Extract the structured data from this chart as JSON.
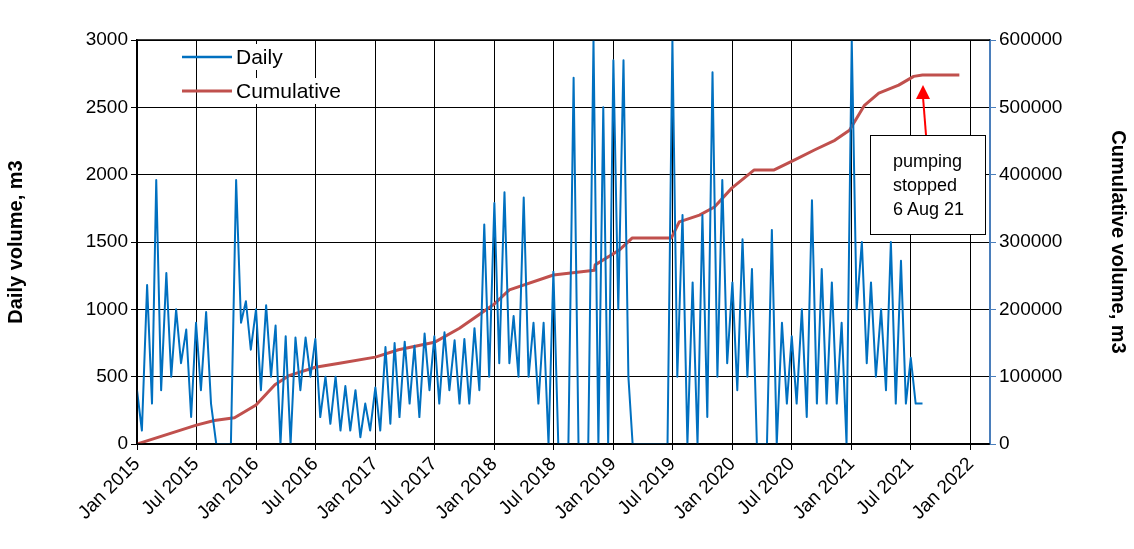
{
  "chart_data": {
    "type": "line",
    "ylabel": "Daily volume, m3",
    "y2label": "Cumulative volume, m3",
    "xlim": [
      "2015-01-01",
      "2022-03-01"
    ],
    "xticks": [
      {
        "value": "2015-01-01",
        "label": "Jan 2015"
      },
      {
        "value": "2015-07-01",
        "label": "Jul 2015"
      },
      {
        "value": "2016-01-01",
        "label": "Jan 2016"
      },
      {
        "value": "2016-07-01",
        "label": "Jul 2016"
      },
      {
        "value": "2017-01-01",
        "label": "Jan 2017"
      },
      {
        "value": "2017-07-01",
        "label": "Jul 2017"
      },
      {
        "value": "2018-01-01",
        "label": "Jan 2018"
      },
      {
        "value": "2018-07-01",
        "label": "Jul 2018"
      },
      {
        "value": "2019-01-01",
        "label": "Jan 2019"
      },
      {
        "value": "2019-07-01",
        "label": "Jul 2019"
      },
      {
        "value": "2020-01-01",
        "label": "Jan 2020"
      },
      {
        "value": "2020-07-01",
        "label": "Jul 2020"
      },
      {
        "value": "2021-01-01",
        "label": "Jan 2021"
      },
      {
        "value": "2021-07-01",
        "label": "Jul 2021"
      },
      {
        "value": "2022-01-01",
        "label": "Jan 2022"
      }
    ],
    "ylim": [
      0,
      3000
    ],
    "yticks": [
      0,
      500,
      1000,
      1500,
      2000,
      2500,
      3000
    ],
    "y2lim": [
      0,
      600000
    ],
    "y2ticks": [
      0,
      100000,
      200000,
      300000,
      400000,
      500000,
      600000
    ],
    "grid": true,
    "legend": "top left",
    "marker": "none",
    "line_style": "solid",
    "annotations": [
      {
        "text": "pumping stopped 6 Aug 21",
        "x": "2021-08-06"
      }
    ],
    "series": [
      {
        "name": "Daily",
        "color": "#0070c0",
        "x": [
          "2015-01-01",
          "2015-01-16",
          "2015-02-01",
          "2015-02-16",
          "2015-03-01",
          "2015-03-16",
          "2015-04-01",
          "2015-04-16",
          "2015-05-01",
          "2015-05-16",
          "2015-06-01",
          "2015-06-16",
          "2015-07-01",
          "2015-07-16",
          "2015-08-01",
          "2015-08-16",
          "2015-09-01",
          "2015-09-16",
          "2015-10-01",
          "2015-10-16",
          "2015-11-01",
          "2015-11-16",
          "2015-12-01",
          "2015-12-16",
          "2016-01-01",
          "2016-01-16",
          "2016-02-01",
          "2016-02-16",
          "2016-03-01",
          "2016-03-16",
          "2016-04-01",
          "2016-04-16",
          "2016-05-01",
          "2016-05-16",
          "2016-06-01",
          "2016-06-16",
          "2016-07-01",
          "2016-07-16",
          "2016-08-01",
          "2016-08-16",
          "2016-09-01",
          "2016-09-16",
          "2016-10-01",
          "2016-10-16",
          "2016-11-01",
          "2016-11-16",
          "2016-12-01",
          "2016-12-16",
          "2017-01-01",
          "2017-01-16",
          "2017-02-01",
          "2017-02-16",
          "2017-03-01",
          "2017-03-16",
          "2017-04-01",
          "2017-04-16",
          "2017-05-01",
          "2017-05-16",
          "2017-06-01",
          "2017-06-16",
          "2017-07-01",
          "2017-07-16",
          "2017-08-01",
          "2017-08-16",
          "2017-09-01",
          "2017-09-16",
          "2017-10-01",
          "2017-10-16",
          "2017-11-01",
          "2017-11-16",
          "2017-12-01",
          "2017-12-16",
          "2018-01-01",
          "2018-01-16",
          "2018-02-01",
          "2018-02-16",
          "2018-03-01",
          "2018-03-16",
          "2018-04-01",
          "2018-04-16",
          "2018-05-01",
          "2018-05-16",
          "2018-06-01",
          "2018-06-16",
          "2018-07-01",
          "2018-07-16",
          "2018-08-01",
          "2018-08-16",
          "2018-09-01",
          "2018-09-16",
          "2018-10-01",
          "2018-10-16",
          "2018-11-01",
          "2018-11-16",
          "2018-12-01",
          "2018-12-16",
          "2019-01-01",
          "2019-01-16",
          "2019-02-01",
          "2019-02-16",
          "2019-03-01",
          "2019-03-16",
          "2019-04-01",
          "2019-04-16",
          "2019-05-01",
          "2019-05-16",
          "2019-06-01",
          "2019-06-16",
          "2019-07-01",
          "2019-07-16",
          "2019-08-01",
          "2019-08-16",
          "2019-09-01",
          "2019-09-16",
          "2019-10-01",
          "2019-10-16",
          "2019-11-01",
          "2019-11-16",
          "2019-12-01",
          "2019-12-16",
          "2020-01-01",
          "2020-01-16",
          "2020-02-01",
          "2020-02-16",
          "2020-03-01",
          "2020-03-16",
          "2020-04-01",
          "2020-04-16",
          "2020-05-01",
          "2020-05-16",
          "2020-06-01",
          "2020-06-16",
          "2020-07-01",
          "2020-07-16",
          "2020-08-01",
          "2020-08-16",
          "2020-09-01",
          "2020-09-16",
          "2020-10-01",
          "2020-10-16",
          "2020-11-01",
          "2020-11-16",
          "2020-12-01",
          "2020-12-16",
          "2021-01-01",
          "2021-01-16",
          "2021-02-01",
          "2021-02-16",
          "2021-03-01",
          "2021-03-16",
          "2021-04-01",
          "2021-04-16",
          "2021-05-01",
          "2021-05-16",
          "2021-06-01",
          "2021-06-16",
          "2021-07-01",
          "2021-07-16",
          "2021-08-06"
        ],
        "values": [
          400,
          100,
          1180,
          300,
          1960,
          400,
          1270,
          500,
          1000,
          600,
          850,
          200,
          900,
          400,
          980,
          300,
          0,
          0,
          0,
          0,
          1960,
          900,
          1060,
          700,
          1000,
          400,
          1030,
          500,
          880,
          0,
          800,
          0,
          790,
          400,
          790,
          500,
          780,
          200,
          500,
          150,
          500,
          100,
          430,
          100,
          400,
          50,
          300,
          100,
          420,
          100,
          720,
          150,
          750,
          200,
          760,
          300,
          730,
          200,
          820,
          400,
          800,
          300,
          830,
          400,
          770,
          300,
          780,
          300,
          860,
          400,
          1630,
          500,
          1790,
          600,
          1870,
          600,
          950,
          500,
          1830,
          500,
          900,
          300,
          900,
          0,
          1280,
          0,
          0,
          0,
          2720,
          0,
          0,
          0,
          3000,
          0,
          2500,
          0,
          2850,
          1000,
          2850,
          500,
          0,
          0,
          0,
          0,
          0,
          0,
          0,
          0,
          3000,
          500,
          1700,
          0,
          1200,
          0,
          1700,
          200,
          2760,
          500,
          1960,
          600,
          1200,
          400,
          1520,
          500,
          1300,
          0,
          0,
          0,
          1590,
          0,
          900,
          300,
          800,
          300,
          1000,
          200,
          1810,
          300,
          1300,
          300,
          1200,
          300,
          900,
          0,
          3000,
          1000,
          1500,
          600,
          1200,
          500,
          1000,
          400,
          1500,
          300,
          1360,
          300,
          640,
          300,
          300
        ]
      },
      {
        "name": "Cumulative",
        "color": "#c0504d",
        "axis": "y2",
        "x": [
          "2015-01-01",
          "2015-07-02",
          "2015-08-26",
          "2015-10-27",
          "2016-01-01",
          "2016-02-28",
          "2016-04-13",
          "2016-07-01",
          "2016-09-13",
          "2017-01-01",
          "2017-03-13",
          "2017-07-01",
          "2017-09-16",
          "2018-01-01",
          "2018-02-16",
          "2018-07-01",
          "2018-11-04",
          "2018-11-06",
          "2019-01-19",
          "2019-02-28",
          "2019-06-28",
          "2019-07-22",
          "2019-09-22",
          "2019-11-07",
          "2019-12-30",
          "2020-03-08",
          "2020-05-08",
          "2020-07-10",
          "2020-09-10",
          "2020-11-10",
          "2020-12-25",
          "2021-02-09",
          "2021-03-25",
          "2021-05-25",
          "2021-07-10",
          "2021-08-06",
          "2021-11-27"
        ],
        "values": [
          0,
          28000,
          35000,
          39000,
          58000,
          88000,
          102000,
          114000,
          120000,
          129000,
          140000,
          151000,
          172000,
          208000,
          229000,
          251000,
          258000,
          266000,
          288000,
          306000,
          306000,
          330000,
          340000,
          352000,
          380000,
          407000,
          407000,
          422000,
          437000,
          451000,
          466000,
          503000,
          521000,
          533000,
          546000,
          548000,
          548000
        ]
      }
    ]
  }
}
